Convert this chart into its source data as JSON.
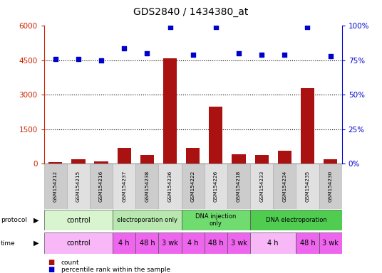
{
  "title": "GDS2840 / 1434380_at",
  "samples": [
    "GSM154212",
    "GSM154215",
    "GSM154216",
    "GSM154237",
    "GSM154238",
    "GSM154236",
    "GSM154222",
    "GSM154226",
    "GSM154218",
    "GSM154233",
    "GSM154234",
    "GSM154235",
    "GSM154230"
  ],
  "counts": [
    60,
    190,
    90,
    680,
    380,
    4600,
    680,
    2500,
    410,
    380,
    570,
    3300,
    190
  ],
  "percentile_ranks": [
    76,
    76,
    75,
    84,
    80,
    99,
    79,
    99,
    80,
    79,
    79,
    99,
    78
  ],
  "ylim_left": [
    0,
    6000
  ],
  "ylim_right": [
    0,
    100
  ],
  "yticks_left": [
    0,
    1500,
    3000,
    4500,
    6000
  ],
  "yticks_right": [
    0,
    25,
    50,
    75,
    100
  ],
  "protocol_groups": [
    {
      "label": "control",
      "start": 0,
      "end": 3,
      "color": "#d8f5d0"
    },
    {
      "label": "electroporation only",
      "start": 3,
      "end": 6,
      "color": "#b8e8b0"
    },
    {
      "label": "DNA injection\nonly",
      "start": 6,
      "end": 9,
      "color": "#70dc70"
    },
    {
      "label": "DNA electroporation",
      "start": 9,
      "end": 13,
      "color": "#50cc50"
    }
  ],
  "time_groups": [
    {
      "label": "control",
      "start": 0,
      "end": 3,
      "color": "#f8b8f8"
    },
    {
      "label": "4 h",
      "start": 3,
      "end": 4,
      "color": "#ee66ee"
    },
    {
      "label": "48 h",
      "start": 4,
      "end": 5,
      "color": "#ee66ee"
    },
    {
      "label": "3 wk",
      "start": 5,
      "end": 6,
      "color": "#ee66ee"
    },
    {
      "label": "4 h",
      "start": 6,
      "end": 7,
      "color": "#ee66ee"
    },
    {
      "label": "48 h",
      "start": 7,
      "end": 8,
      "color": "#ee66ee"
    },
    {
      "label": "3 wk",
      "start": 8,
      "end": 9,
      "color": "#ee66ee"
    },
    {
      "label": "4 h",
      "start": 9,
      "end": 11,
      "color": "#f8b8f8"
    },
    {
      "label": "48 h",
      "start": 11,
      "end": 12,
      "color": "#ee66ee"
    },
    {
      "label": "3 wk",
      "start": 12,
      "end": 13,
      "color": "#ee66ee"
    }
  ],
  "bar_color": "#aa1111",
  "dot_color": "#0000cc",
  "background_color": "#ffffff",
  "axis_color_left": "#cc2200",
  "axis_color_right": "#0000cc",
  "sample_bg_even": "#cccccc",
  "sample_bg_odd": "#e0e0e0"
}
